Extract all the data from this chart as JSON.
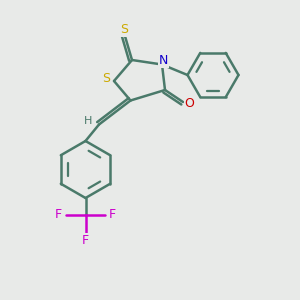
{
  "background_color": "#e8eae8",
  "bond_color": "#4a7a6a",
  "bond_width": 1.8,
  "atom_colors": {
    "S": "#ccaa00",
    "N": "#1100cc",
    "O": "#cc0000",
    "F": "#cc00cc",
    "H": "#4a7a6a",
    "C": "#4a7a6a"
  },
  "figsize": [
    3.0,
    3.0
  ],
  "dpi": 100
}
